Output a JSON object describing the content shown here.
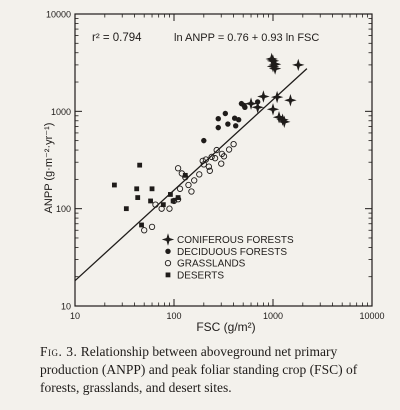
{
  "chart_data": {
    "type": "scatter",
    "xscale": "log",
    "yscale": "log",
    "xlim": [
      10,
      10000
    ],
    "ylim": [
      10,
      10000
    ],
    "xlabel": "FSC (g/m²)",
    "ylabel": "ANPP (g·m⁻²·yr⁻¹)",
    "x_ticks": [
      "10",
      "100",
      "1000",
      "10000"
    ],
    "y_ticks": [
      "10",
      "100",
      "1000",
      "10000"
    ],
    "annotations": {
      "r2": "r² = 0.794",
      "equation": "ln ANPP = 0.76 + 0.93 ln FSC"
    },
    "fit_line": {
      "equation": "ln ANPP = 0.76 + 0.93 ln FSC",
      "intercept": 0.76,
      "slope": 0.93,
      "x_range": [
        10,
        2200
      ]
    },
    "legend_position": "lower-right, inside plot",
    "series": [
      {
        "name": "CONIFEROUS FORESTS",
        "marker": "star",
        "points": [
          [
            1000,
            3300
          ],
          [
            1000,
            2900
          ],
          [
            1050,
            3050
          ],
          [
            970,
            3450
          ],
          [
            1050,
            2750
          ],
          [
            1800,
            3000
          ],
          [
            800,
            1420
          ],
          [
            1100,
            1400
          ],
          [
            1500,
            1300
          ],
          [
            1000,
            1050
          ],
          [
            1150,
            870
          ],
          [
            1300,
            780
          ],
          [
            700,
            1100
          ],
          [
            600,
            1200
          ],
          [
            1250,
            820
          ]
        ]
      },
      {
        "name": "DECIDUOUS FORESTS",
        "marker": "filled-circle",
        "points": [
          [
            480,
            1200
          ],
          [
            510,
            1150
          ],
          [
            330,
            950
          ],
          [
            280,
            680
          ],
          [
            350,
            740
          ],
          [
            410,
            850
          ],
          [
            420,
            710
          ],
          [
            450,
            820
          ],
          [
            200,
            500
          ],
          [
            280,
            840
          ],
          [
            520,
            1100
          ],
          [
            700,
            1250
          ]
        ]
      },
      {
        "name": "GRASSLANDS",
        "marker": "open-circle",
        "points": [
          [
            50,
            60
          ],
          [
            60,
            65
          ],
          [
            65,
            110
          ],
          [
            75,
            100
          ],
          [
            90,
            100
          ],
          [
            100,
            120
          ],
          [
            110,
            125
          ],
          [
            115,
            160
          ],
          [
            130,
            210
          ],
          [
            140,
            175
          ],
          [
            160,
            195
          ],
          [
            120,
            230
          ],
          [
            180,
            225
          ],
          [
            200,
            285
          ],
          [
            210,
            320
          ],
          [
            225,
            270
          ],
          [
            240,
            340
          ],
          [
            260,
            330
          ],
          [
            270,
            400
          ],
          [
            300,
            290
          ],
          [
            305,
            365
          ],
          [
            320,
            345
          ],
          [
            360,
            405
          ],
          [
            400,
            460
          ],
          [
            110,
            260
          ],
          [
            150,
            150
          ],
          [
            230,
            245
          ],
          [
            195,
            310
          ]
        ]
      },
      {
        "name": "DESERTS",
        "marker": "filled-square",
        "points": [
          [
            25,
            175
          ],
          [
            33,
            100
          ],
          [
            42,
            160
          ],
          [
            45,
            280
          ],
          [
            43,
            130
          ],
          [
            47,
            68
          ],
          [
            58,
            120
          ],
          [
            60,
            160
          ],
          [
            92,
            140
          ],
          [
            110,
            130
          ],
          [
            130,
            220
          ],
          [
            98,
            120
          ],
          [
            78,
            110
          ]
        ]
      }
    ]
  },
  "caption": {
    "label": "Fig. 3.",
    "text": "Relationship between aboveground net primary production (ANPP) and peak foliar standing crop (FSC) of forests, grasslands, and desert sites."
  }
}
